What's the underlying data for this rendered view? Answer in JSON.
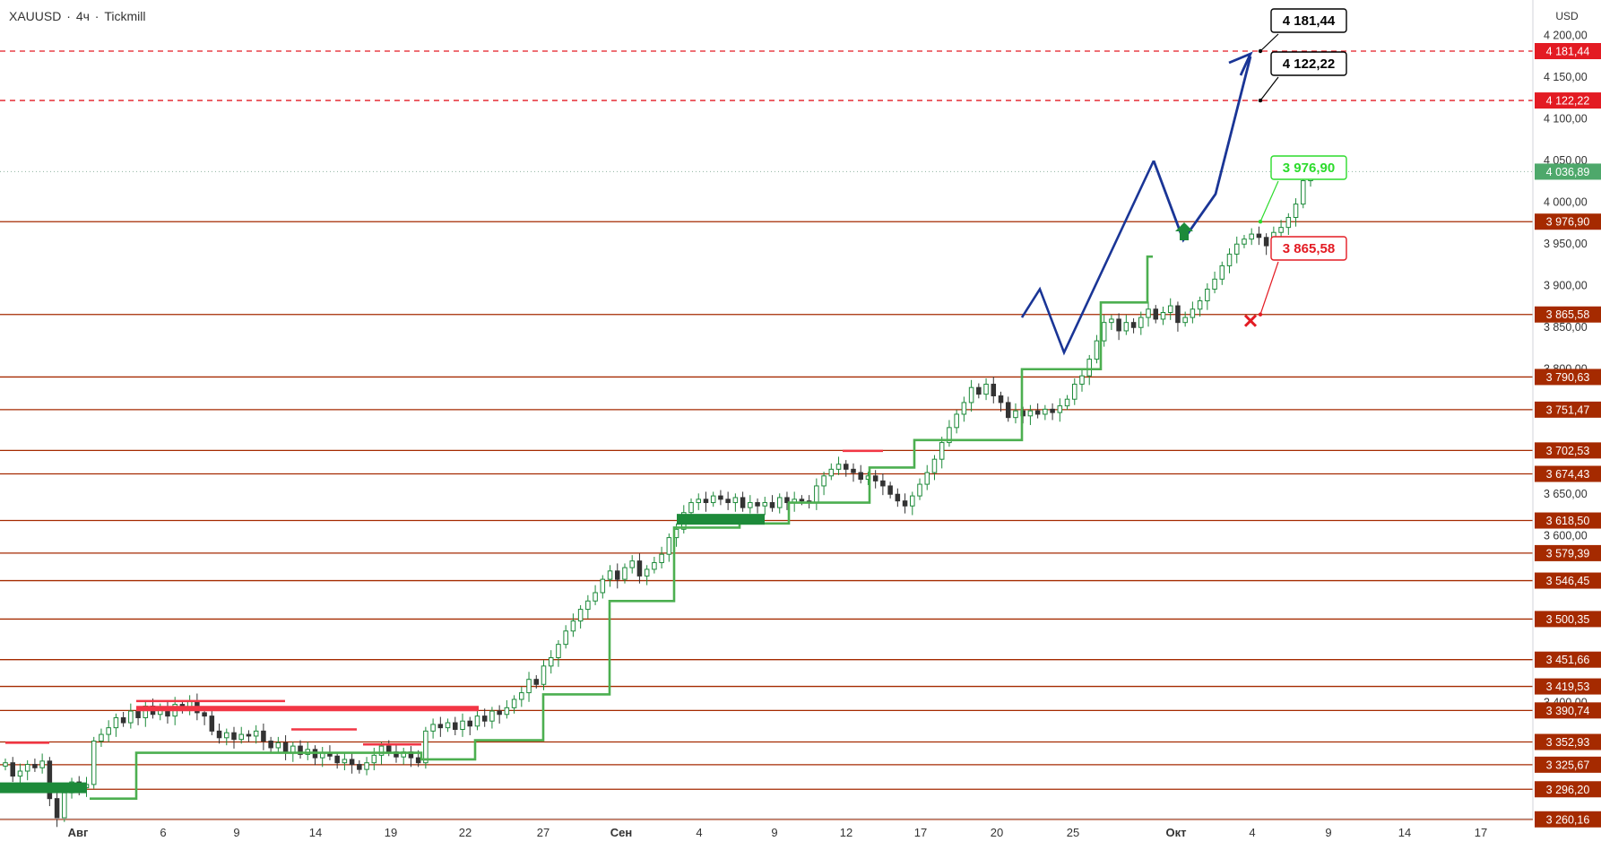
{
  "header": {
    "symbol": "XAUUSD",
    "separator": "·",
    "timeframe": "4ч",
    "broker": "Tickmill"
  },
  "colors": {
    "level_line": "#a52a00",
    "level_label_bg": "#a52a00",
    "target_line": "#e31b23",
    "bull_candle": "#1d8a3a",
    "supertrend_up": "#4caf50",
    "supertrend_down": "#f23645",
    "forecast_path": "#1a3596",
    "current_price_bg": "#4ea86b",
    "green_callout": "#2cdb2c",
    "red_callout": "#e31b23"
  },
  "chart_data": {
    "type": "line",
    "symbol": "XAUUSD",
    "timeframe": "4ч",
    "currency": "USD",
    "ylim": [
      3237,
      4215
    ],
    "price_axis_ticks": [
      "4 200,00",
      "4 150,00",
      "4 100,00",
      "4 050,00",
      "4 000,00",
      "3 950,00",
      "3 900,00",
      "3 850,00",
      "3 800,00",
      "3 650,00",
      "3 600,00",
      "3 400,00"
    ],
    "x_tick_labels": [
      {
        "label": "Авг",
        "bold": true
      },
      {
        "label": "6"
      },
      {
        "label": "9"
      },
      {
        "label": "14"
      },
      {
        "label": "19"
      },
      {
        "label": "22"
      },
      {
        "label": "27"
      },
      {
        "label": "Сен",
        "bold": true
      },
      {
        "label": "4"
      },
      {
        "label": "9"
      },
      {
        "label": "12"
      },
      {
        "label": "17"
      },
      {
        "label": "20"
      },
      {
        "label": "25"
      },
      {
        "label": "Окт",
        "bold": true
      },
      {
        "label": "4"
      },
      {
        "label": "9"
      },
      {
        "label": "14"
      },
      {
        "label": "17"
      }
    ],
    "current_price": {
      "value": 4036.89,
      "label": "4 036,89"
    },
    "target_levels": [
      {
        "value": 4181.44,
        "label": "4 181,44",
        "callout": "4 181,44"
      },
      {
        "value": 4122.22,
        "label": "4 122,22",
        "callout": "4 122,22"
      }
    ],
    "levels": [
      {
        "value": 3976.9,
        "label": "3 976,90"
      },
      {
        "value": 3865.58,
        "label": "3 865,58"
      },
      {
        "value": 3790.63,
        "label": "3 790,63"
      },
      {
        "value": 3751.47,
        "label": "3 751,47"
      },
      {
        "value": 3702.53,
        "label": "3 702,53"
      },
      {
        "value": 3674.43,
        "label": "3 674,43"
      },
      {
        "value": 3618.5,
        "label": "3 618,50"
      },
      {
        "value": 3579.39,
        "label": "3 579,39"
      },
      {
        "value": 3546.45,
        "label": "3 546,45"
      },
      {
        "value": 3500.35,
        "label": "3 500,35"
      },
      {
        "value": 3451.66,
        "label": "3 451,66"
      },
      {
        "value": 3419.53,
        "label": "3 419,53"
      },
      {
        "value": 3390.74,
        "label": "3 390,74"
      },
      {
        "value": 3352.93,
        "label": "3 352,93"
      },
      {
        "value": 3325.67,
        "label": "3 325,67"
      },
      {
        "value": 3296.2,
        "label": "3 296,20"
      },
      {
        "value": 3260.16,
        "label": "3 260,16"
      }
    ],
    "buy_callout": {
      "value": 3976.9,
      "label": "3 976,90"
    },
    "stop_callout": {
      "value": 3865.58,
      "label": "3 865,58"
    },
    "close_series": [
      3328,
      3312,
      3318,
      3326,
      3322,
      3330,
      3285,
      3262,
      3292,
      3305,
      3298,
      3302,
      3354,
      3362,
      3370,
      3382,
      3376,
      3390,
      3382,
      3396,
      3386,
      3394,
      3384,
      3398,
      3392,
      3402,
      3388,
      3384,
      3366,
      3358,
      3364,
      3356,
      3362,
      3360,
      3366,
      3354,
      3346,
      3352,
      3340,
      3348,
      3338,
      3344,
      3334,
      3340,
      3336,
      3328,
      3332,
      3326,
      3320,
      3328,
      3337,
      3348,
      3341,
      3335,
      3341,
      3334,
      3328,
      3366,
      3374,
      3370,
      3376,
      3368,
      3378,
      3372,
      3384,
      3378,
      3390,
      3386,
      3394,
      3404,
      3412,
      3428,
      3422,
      3444,
      3454,
      3470,
      3486,
      3498,
      3512,
      3522,
      3532,
      3548,
      3558,
      3548,
      3562,
      3570,
      3552,
      3560,
      3568,
      3578,
      3598,
      3608,
      3628,
      3640,
      3644,
      3640,
      3648,
      3644,
      3640,
      3646,
      3634,
      3640,
      3636,
      3640,
      3634,
      3646,
      3640,
      3644,
      3642,
      3640,
      3660,
      3672,
      3680,
      3686,
      3680,
      3676,
      3668,
      3672,
      3666,
      3660,
      3650,
      3642,
      3636,
      3648,
      3662,
      3676,
      3692,
      3712,
      3730,
      3746,
      3760,
      3778,
      3770,
      3782,
      3768,
      3760,
      3742,
      3750,
      3744,
      3750,
      3746,
      3752,
      3748,
      3756,
      3764,
      3782,
      3792,
      3812,
      3834,
      3856,
      3860,
      3846,
      3856,
      3850,
      3862,
      3872,
      3860,
      3868,
      3876,
      3856,
      3862,
      3872,
      3882,
      3896,
      3908,
      3924,
      3938,
      3950,
      3956,
      3962,
      3958,
      3948,
      3964,
      3970,
      3982,
      3998,
      4026,
      4037
    ],
    "forecast_path": [
      {
        "bar_offset": 0,
        "value": 4050
      },
      {
        "bar_offset": 9,
        "value": 3955
      },
      {
        "bar_offset": 17,
        "value": 4010
      },
      {
        "bar_offset": 25,
        "value": 4175
      }
    ],
    "intraday_zigzag": [
      {
        "label": "peak",
        "value": 3896
      },
      {
        "label": "trough",
        "value": 3820
      },
      {
        "label": "peak",
        "value": 4050
      }
    ],
    "supertrend_up": [
      {
        "from": "Авг",
        "value": 3285
      },
      {
        "from": "6",
        "value": 3340
      },
      {
        "from": "22",
        "value": 3332
      },
      {
        "from": "27",
        "value": 3355
      },
      {
        "from": "Сен",
        "value": 3410
      },
      {
        "from": "4",
        "value": 3522
      },
      {
        "from": "9",
        "value": 3610
      },
      {
        "from": "12",
        "value": 3615
      },
      {
        "from": "17",
        "value": 3640
      },
      {
        "from": "20",
        "value": 3682
      },
      {
        "from": "25",
        "value": 3715
      },
      {
        "from": "Окт",
        "value": 3800
      },
      {
        "from": "4",
        "value": 3880
      },
      {
        "from": "9",
        "value": 3935
      }
    ],
    "supertrend_down": [
      {
        "from": "Авг",
        "value": 3352
      },
      {
        "from": "6",
        "value": 3402
      },
      {
        "from": "19",
        "value": 3368
      },
      {
        "from": "22",
        "value": 3350
      },
      {
        "from": "20",
        "value": 3702
      }
    ],
    "grid": false,
    "legend": "none"
  }
}
